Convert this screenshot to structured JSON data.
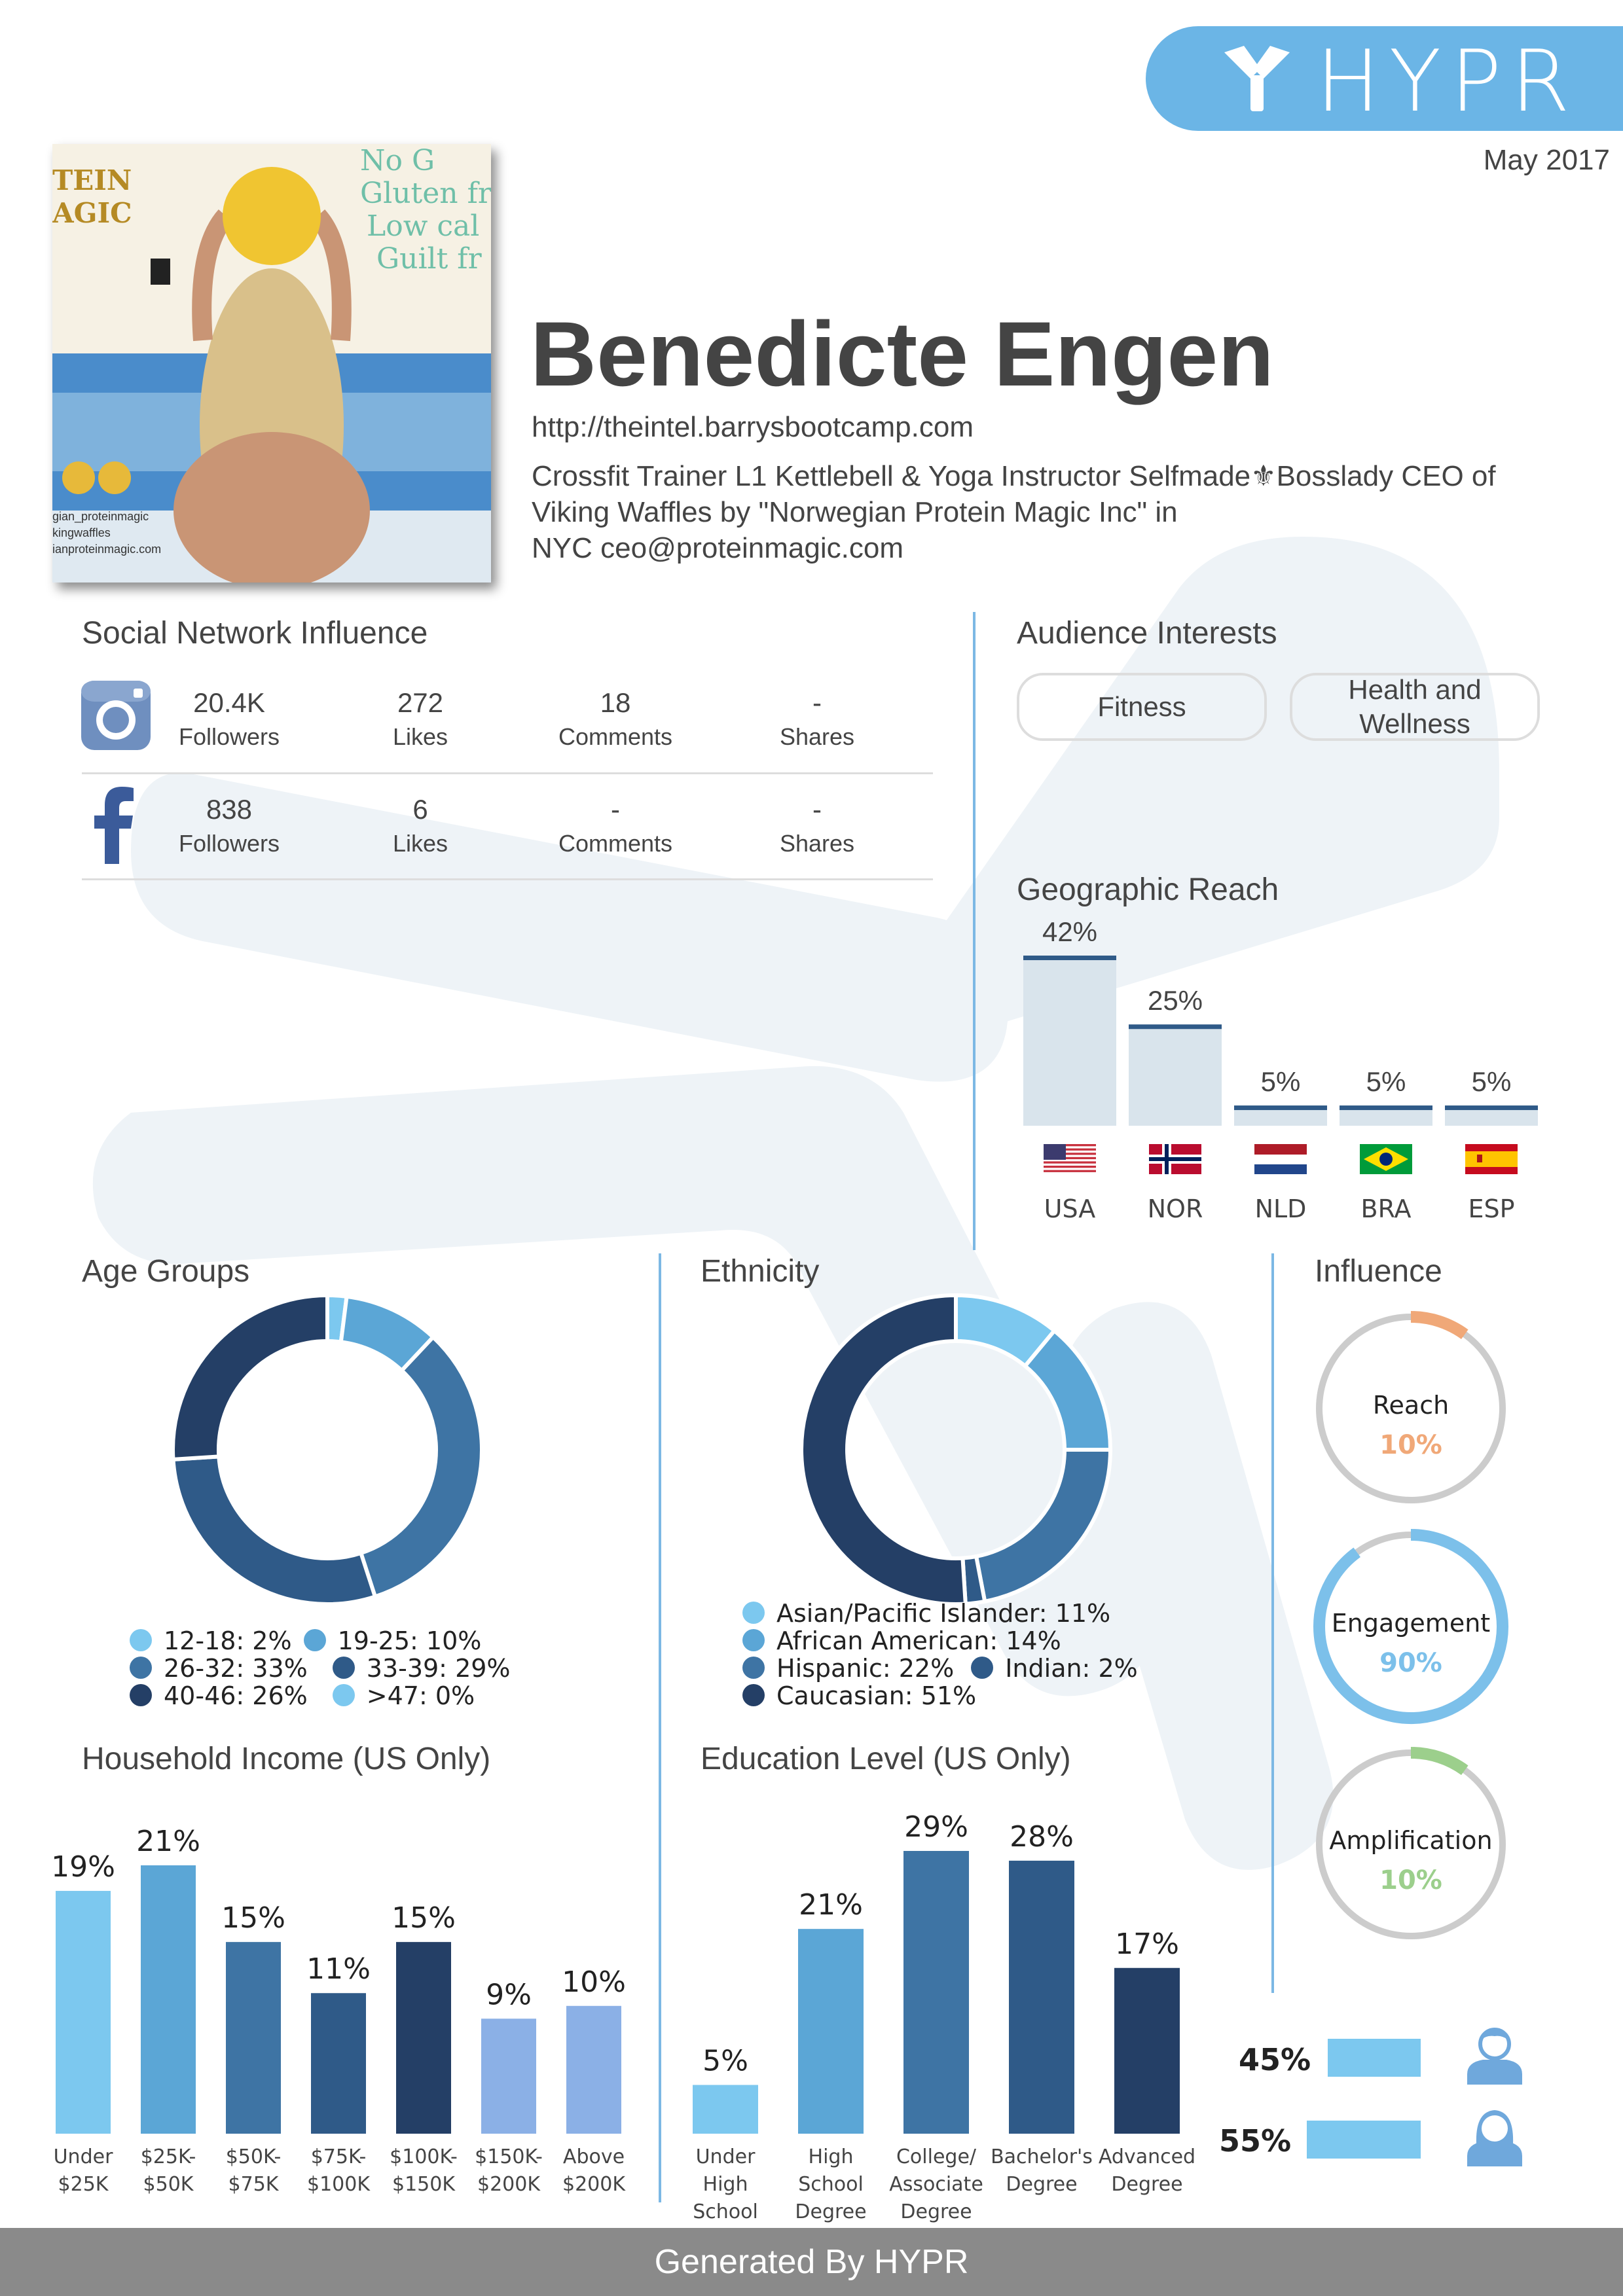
{
  "brand": {
    "logo_text": "HYPR",
    "date": "May 2017",
    "accent": "#6bb5e6"
  },
  "profile": {
    "name": "Benedicte Engen",
    "url": "http://theintel.barrysbootcamp.com",
    "bio_line1": "Crossfit Trainer L1 Kettlebell & Yoga Instructor Selfmade⚜Bosslady CEO of",
    "bio_line2": "Viking Waffles by \"Norwegian Protein Magic Inc\" in",
    "bio_line3": "NYC   ceo@proteinmagic.com",
    "photo_text": {
      "brand1": "TEIN",
      "brand2": "AGIC",
      "t1": "No G",
      "t2": "Gluten fr",
      "t3": "Low cal",
      "t4": "Guilt fr",
      "h1": "gian_proteinmagic",
      "h2": "kingwaffles",
      "h3": "ianproteinmagic.com"
    }
  },
  "social": {
    "title": "Social Network Influence",
    "networks": [
      {
        "icon": "instagram-icon",
        "followers": "20.4K",
        "followers_label": "Followers",
        "likes": "272",
        "likes_label": "Likes",
        "comments": "18",
        "comments_label": "Comments",
        "shares": "-",
        "shares_label": "Shares"
      },
      {
        "icon": "facebook-icon",
        "followers": "838",
        "followers_label": "Followers",
        "likes": "6",
        "likes_label": "Likes",
        "comments": "-",
        "comments_label": "Comments",
        "shares": "-",
        "shares_label": "Shares"
      }
    ]
  },
  "interests": {
    "title": "Audience Interests",
    "items": [
      "Fitness",
      "Health and Wellness"
    ]
  },
  "geo": {
    "title": "Geographic Reach",
    "countries": [
      {
        "code": "USA",
        "pct": 42,
        "label": "42%"
      },
      {
        "code": "NOR",
        "pct": 25,
        "label": "25%"
      },
      {
        "code": "NLD",
        "pct": 5,
        "label": "5%"
      },
      {
        "code": "BRA",
        "pct": 5,
        "label": "5%"
      },
      {
        "code": "ESP",
        "pct": 5,
        "label": "5%"
      }
    ]
  },
  "age": {
    "title": "Age Groups",
    "legend": [
      "12-18: 2%",
      "19-25: 10%",
      "26-32: 33%",
      "33-39: 29%",
      "40-46: 26%",
      ">47: 0%"
    ]
  },
  "ethnicity": {
    "title": "Ethnicity",
    "legend": [
      "Asian/Pacific Islander: 11%",
      "African American: 14%",
      "Hispanic: 22%",
      "Indian: 2%",
      "Caucasian: 51%"
    ]
  },
  "influence": {
    "title": "Influence",
    "items": [
      {
        "label": "Reach",
        "value": "10%",
        "pct": 10,
        "color": "#f0a878"
      },
      {
        "label": "Engagement",
        "value": "90%",
        "pct": 90,
        "color": "#7cc0ea"
      },
      {
        "label": "Amplification",
        "value": "10%",
        "pct": 10,
        "color": "#9ccf8c"
      }
    ]
  },
  "gender": {
    "male": "45%",
    "female": "55%",
    "male_pct": 45,
    "female_pct": 55
  },
  "income": {
    "title": "Household Income (US Only)",
    "categories": [
      "Under\n$25K",
      "$25K-\n$50K",
      "$50K-\n$75K",
      "$75K-\n$100K",
      "$100K-\n$150K",
      "$150K-\n$200K",
      "Above\n$200K"
    ],
    "values": [
      19,
      21,
      15,
      11,
      15,
      9,
      10
    ],
    "labels": [
      "19%",
      "21%",
      "15%",
      "11%",
      "15%",
      "9%",
      "10%"
    ]
  },
  "education": {
    "title": "Education Level (US Only)",
    "categories": [
      "Under\nHigh\nSchool",
      "High\nSchool\nDegree",
      "College/\nAssociate\nDegree",
      "Bachelor's\nDegree",
      "Advanced\nDegree"
    ],
    "values": [
      5,
      21,
      29,
      28,
      17
    ],
    "labels": [
      "5%",
      "21%",
      "29%",
      "28%",
      "17%"
    ]
  },
  "chart_data": [
    {
      "type": "bar",
      "title": "Geographic Reach",
      "categories": [
        "USA",
        "NOR",
        "NLD",
        "BRA",
        "ESP"
      ],
      "values": [
        42,
        25,
        5,
        5,
        5
      ]
    },
    {
      "type": "pie",
      "title": "Age Groups",
      "categories": [
        "12-18",
        "19-25",
        "26-32",
        "33-39",
        "40-46",
        ">47"
      ],
      "values": [
        2,
        10,
        33,
        29,
        26,
        0
      ],
      "colors": [
        "#7cc8ef",
        "#5ba6d6",
        "#3e74a4",
        "#2f5a88",
        "#243f66",
        "#7cc8ef"
      ]
    },
    {
      "type": "pie",
      "title": "Ethnicity",
      "categories": [
        "Asian/Pacific Islander",
        "African American",
        "Hispanic",
        "Indian",
        "Caucasian"
      ],
      "values": [
        11,
        14,
        22,
        2,
        51
      ],
      "colors": [
        "#7cc8ef",
        "#5ba6d6",
        "#3e74a4",
        "#2f5a88",
        "#243f66"
      ]
    },
    {
      "type": "bar",
      "title": "Household Income (US Only)",
      "categories": [
        "Under $25K",
        "$25K-$50K",
        "$50K-$75K",
        "$75K-$100K",
        "$100K-$150K",
        "$150K-$200K",
        "Above $200K"
      ],
      "values": [
        19,
        21,
        15,
        11,
        15,
        9,
        10
      ],
      "colors": [
        "#7cc8ef",
        "#5ba6d6",
        "#3e74a4",
        "#2f5a88",
        "#243f66",
        "#8bb0e6",
        "#8bb0e6"
      ]
    },
    {
      "type": "bar",
      "title": "Education Level (US Only)",
      "categories": [
        "Under High School",
        "High School Degree",
        "College/Associate Degree",
        "Bachelor's Degree",
        "Advanced Degree"
      ],
      "values": [
        5,
        21,
        29,
        28,
        17
      ],
      "colors": [
        "#7cc8ef",
        "#5ba6d6",
        "#3e74a4",
        "#2f5a88",
        "#243f66"
      ]
    }
  ],
  "footer": "Generated By HYPR"
}
